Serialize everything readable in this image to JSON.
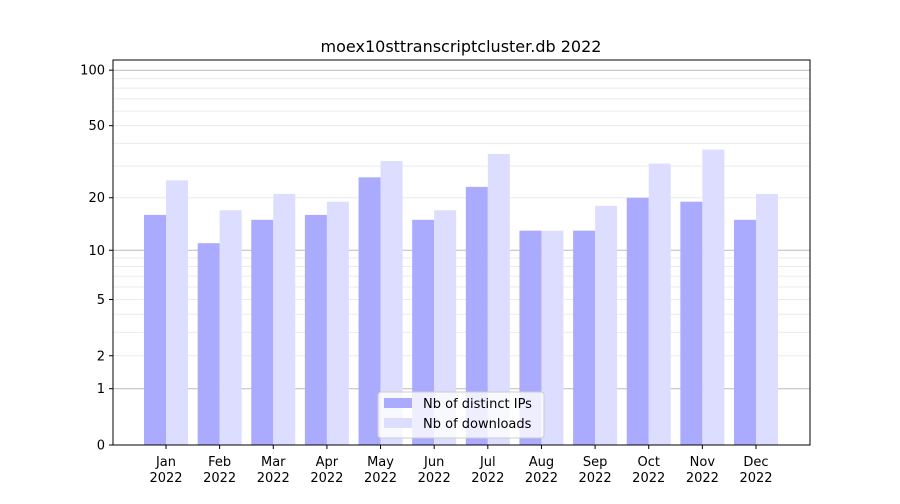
{
  "chart_data": {
    "type": "bar",
    "title": "moex10sttranscriptcluster.db 2022",
    "xlabel": "",
    "ylabel": "",
    "yscale": "log(1+y)",
    "ylim": [
      0,
      110
    ],
    "yticks": [
      0,
      1,
      2,
      5,
      10,
      20,
      50,
      100
    ],
    "grid": true,
    "legend_position": "bottom-center",
    "categories": [
      "Jan\n2022",
      "Feb\n2022",
      "Mar\n2022",
      "Apr\n2022",
      "May\n2022",
      "Jun\n2022",
      "Jul\n2022",
      "Aug\n2022",
      "Sep\n2022",
      "Oct\n2022",
      "Nov\n2022",
      "Dec\n2022"
    ],
    "series": [
      {
        "name": "Nb of distinct IPs",
        "color": "#aaaaff",
        "values": [
          16,
          11,
          15,
          16,
          26,
          15,
          23,
          13,
          13,
          20,
          19,
          15
        ]
      },
      {
        "name": "Nb of downloads",
        "color": "#ddddff",
        "values": [
          25,
          17,
          21,
          19,
          32,
          17,
          35,
          13,
          18,
          31,
          37,
          21
        ]
      }
    ]
  }
}
